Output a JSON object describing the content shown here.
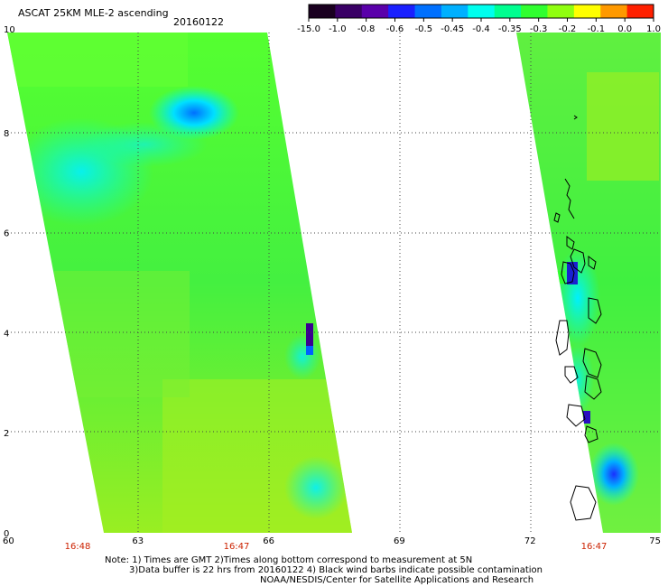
{
  "header": {
    "title": "ASCAT 25KM MLE-2 ascending",
    "date": "20160122"
  },
  "colorbar": {
    "labels": [
      "-15.0",
      "-1.0",
      "-0.8",
      "-0.6",
      "-0.5",
      "-0.45",
      "-0.4",
      "-0.35",
      "-0.3",
      "-0.2",
      "-0.1",
      "0.0",
      "1.0"
    ],
    "colors": [
      "#1a0020",
      "#3a0066",
      "#5a00aa",
      "#1a20ff",
      "#0070ff",
      "#00b0ff",
      "#00ffee",
      "#00ff90",
      "#30ff30",
      "#90ff10",
      "#ffff00",
      "#ff9900",
      "#ff2000"
    ]
  },
  "axes": {
    "x_ticks": [
      "60",
      "63",
      "66",
      "69",
      "72",
      "75"
    ],
    "y_ticks": [
      "10",
      "8",
      "6",
      "4",
      "2",
      "0"
    ],
    "x_range": [
      60,
      75
    ],
    "y_range": [
      0,
      10
    ]
  },
  "swath_times": [
    "16:48",
    "16:47",
    "16:47"
  ],
  "notes": [
    "Note: 1) Times are GMT 2)Times along bottom correspond to measurement at 5N",
    "3)Data buffer is 22 hrs from 20160122 4) Black wind barbs indicate possible contamination",
    "NOAA/NESDIS/Center for Satellite Applications and Research"
  ],
  "chart_data": {
    "type": "heatmap",
    "title": "ASCAT 25KM MLE-2 ascending",
    "xlabel": "",
    "ylabel": "",
    "xlim": [
      60,
      75
    ],
    "ylim": [
      0,
      10
    ],
    "grid": true,
    "legend": "top colorbar"
  }
}
